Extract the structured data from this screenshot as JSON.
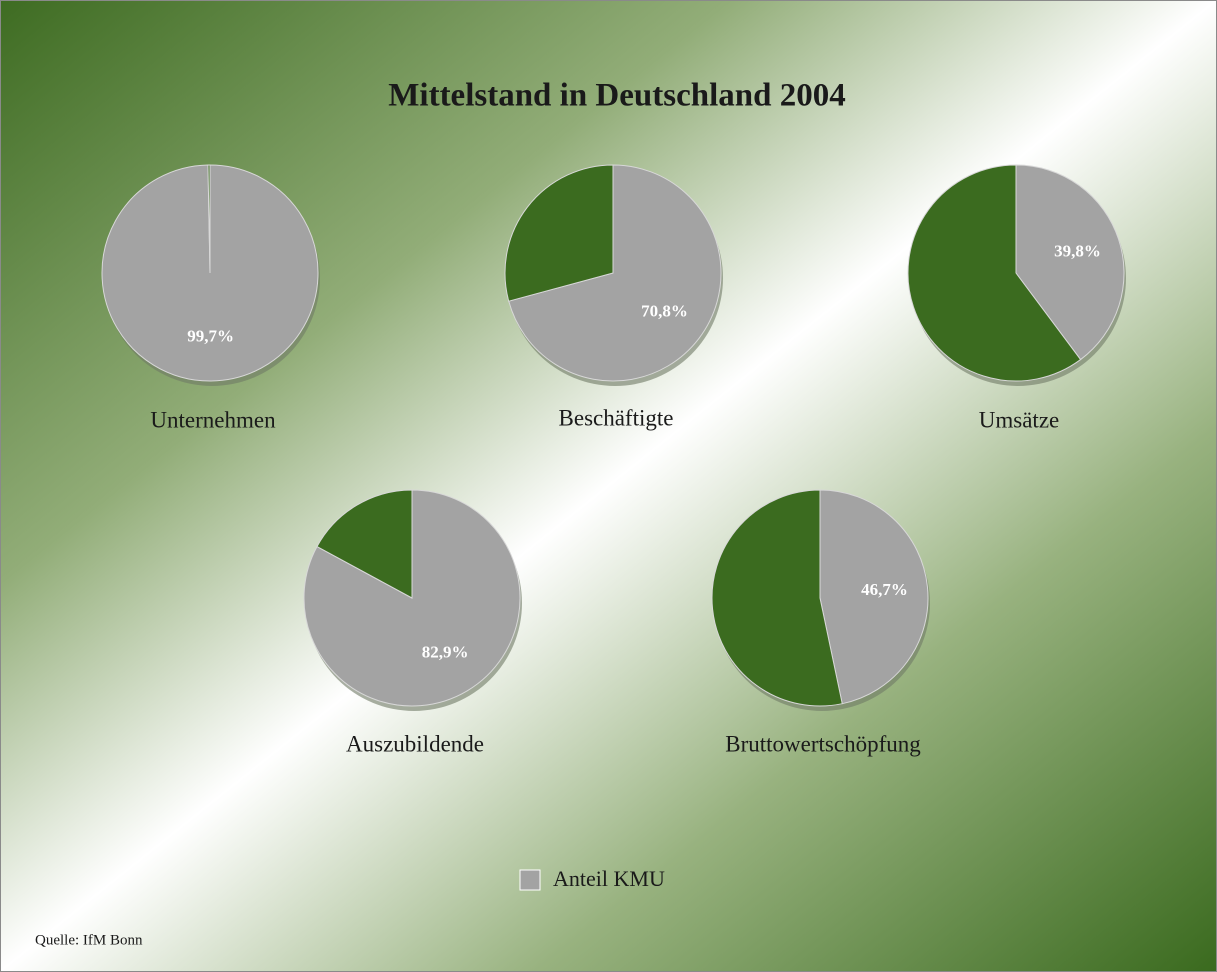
{
  "title": "Mittelstand in Deutschland 2004",
  "legend": {
    "name": "Anteil KMU",
    "color": "#a3a3a3"
  },
  "source": "Quelle: IfM Bonn",
  "chart_data": [
    {
      "type": "pie",
      "title": "Unternehmen",
      "values": [
        99.7,
        0.3
      ],
      "value_labels": [
        "99,7%",
        null
      ],
      "colors": [
        "#a3a3a3",
        "#3b6b1f"
      ]
    },
    {
      "type": "pie",
      "title": "Beschäftigte",
      "values": [
        70.8,
        29.2
      ],
      "value_labels": [
        "70,8%",
        null
      ],
      "colors": [
        "#a3a3a3",
        "#3b6b1f"
      ]
    },
    {
      "type": "pie",
      "title": "Umsätze",
      "values": [
        39.8,
        60.2
      ],
      "value_labels": [
        "39,8%",
        null
      ],
      "colors": [
        "#a3a3a3",
        "#3b6b1f"
      ]
    },
    {
      "type": "pie",
      "title": "Auszubildende",
      "values": [
        82.9,
        17.1
      ],
      "value_labels": [
        "82,9%",
        null
      ],
      "colors": [
        "#a3a3a3",
        "#3b6b1f"
      ]
    },
    {
      "type": "pie",
      "title": "Bruttowertschöpfung",
      "values": [
        46.7,
        53.3
      ],
      "value_labels": [
        "46,7%",
        null
      ],
      "colors": [
        "#a3a3a3",
        "#3b6b1f"
      ]
    }
  ]
}
